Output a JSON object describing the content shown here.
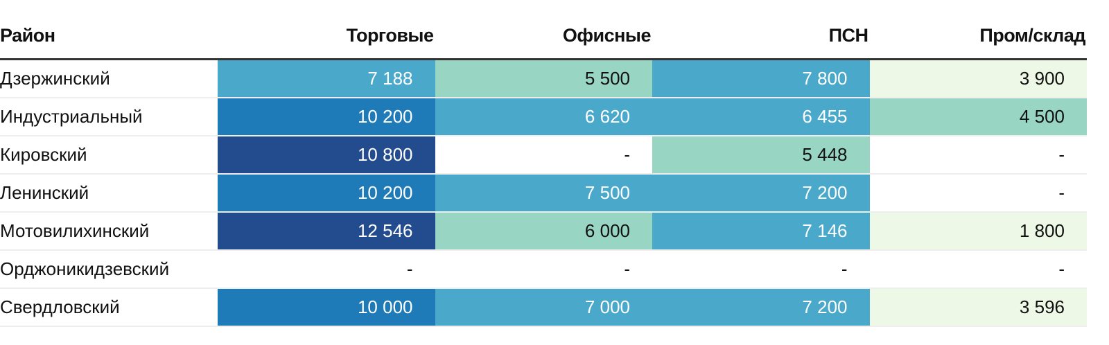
{
  "chart_data": {
    "type": "heatmap",
    "title": "",
    "columns": {
      "district": "Район",
      "series": [
        "Торговые",
        "Офисные",
        "ПСН",
        "Пром/склад"
      ]
    },
    "rows": [
      {
        "district": "Дзержинский",
        "display": [
          "7 188",
          "5 500",
          "7 800",
          "3 900"
        ],
        "values": [
          7188,
          5500,
          7800,
          3900
        ]
      },
      {
        "district": "Индустриальный",
        "display": [
          "10 200",
          "6 620",
          "6 455",
          "4 500"
        ],
        "values": [
          10200,
          6620,
          6455,
          4500
        ]
      },
      {
        "district": "Кировский",
        "display": [
          "10 800",
          "-",
          "5 448",
          "-"
        ],
        "values": [
          10800,
          null,
          5448,
          null
        ]
      },
      {
        "district": "Ленинский",
        "display": [
          "10 200",
          "7 500",
          "7 200",
          "-"
        ],
        "values": [
          10200,
          7500,
          7200,
          null
        ]
      },
      {
        "district": "Мотовилихинский",
        "display": [
          "12 546",
          "6 000",
          "7 146",
          "1 800"
        ],
        "values": [
          12546,
          6000,
          7146,
          1800
        ]
      },
      {
        "district": "Орджоникидзевский",
        "display": [
          "-",
          "-",
          "-",
          "-"
        ],
        "values": [
          null,
          null,
          null,
          null
        ]
      },
      {
        "district": "Свердловский",
        "display": [
          "10 000",
          "7 000",
          "7 200",
          "3 596"
        ],
        "values": [
          10000,
          7000,
          7200,
          3596
        ]
      }
    ],
    "color_scale": [
      {
        "min": 10500,
        "fill": "#234c8e",
        "text": "#ffffff"
      },
      {
        "min": 8000,
        "fill": "#1f7ab8",
        "text": "#ffffff"
      },
      {
        "min": 6200,
        "fill": "#4aa8cb",
        "text": "#ffffff"
      },
      {
        "min": 4200,
        "fill": "#98d5c2",
        "text": "#111111"
      },
      {
        "min": 0,
        "fill": "#eef8e6",
        "text": "#111111"
      }
    ],
    "empty_fill": "#ffffff",
    "empty_text": "#111111"
  }
}
